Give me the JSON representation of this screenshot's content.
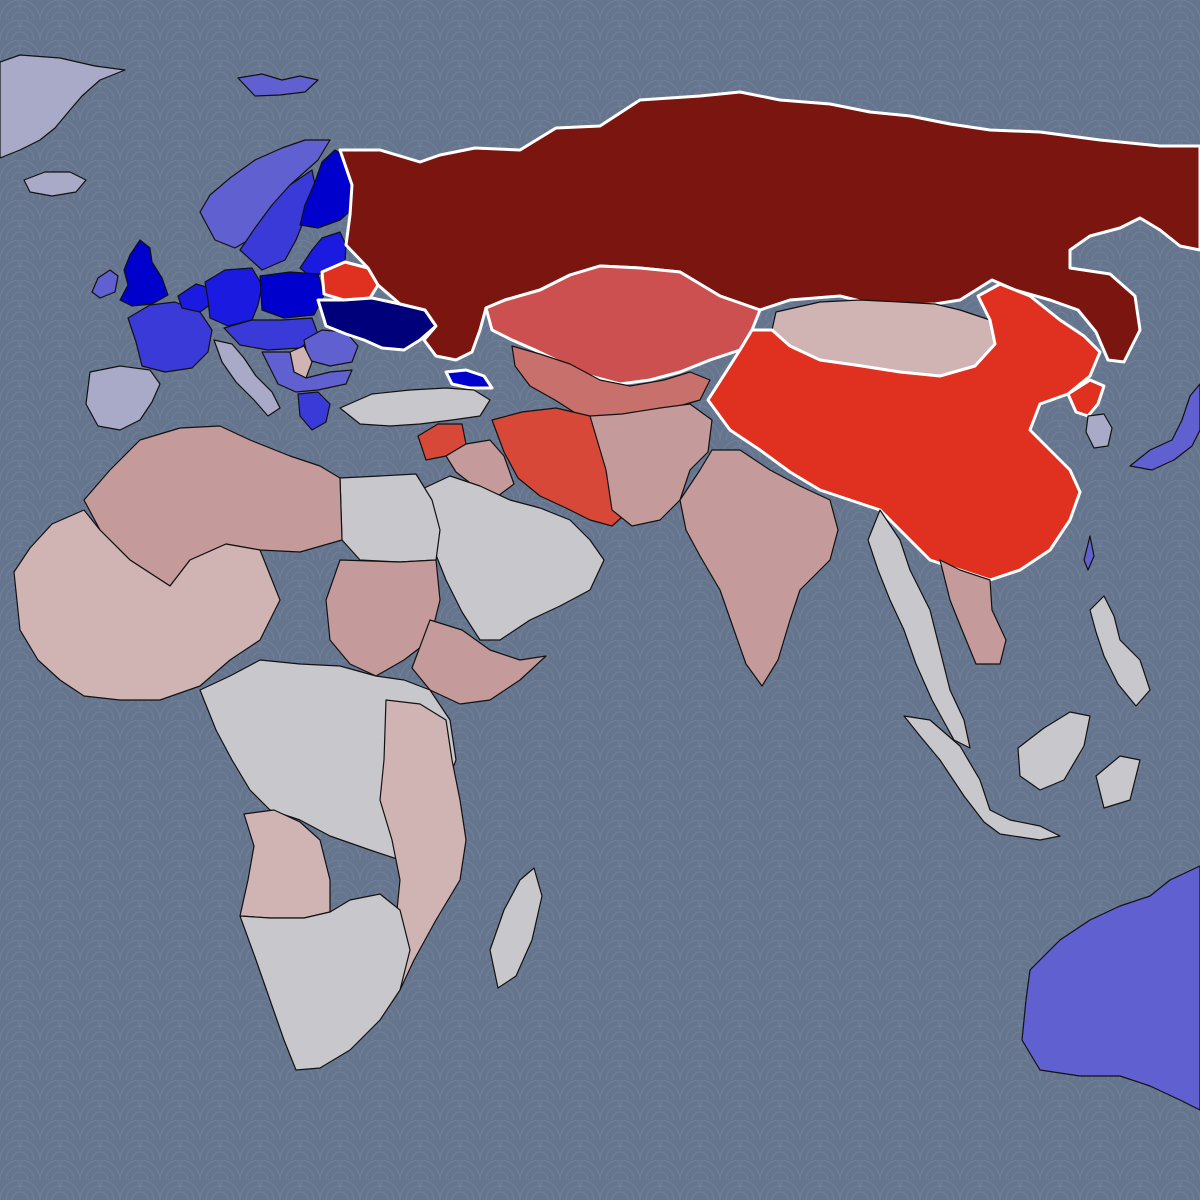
{
  "map": {
    "ocean_color": "#66758e",
    "wave_color": "#7a88a0",
    "border_color": "#111111",
    "highlight_border_color": "#ffffff"
  },
  "legend_colors": {
    "strong_blue": "#0000cc",
    "blue": "#1a1ae0",
    "medium_blue": "#3a3ad8",
    "light_blue": "#6060d0",
    "pale_blue": "#a8aac8",
    "navy": "#00007a",
    "neutral": "#c8c8cc",
    "pale_red": "#d0b4b4",
    "light_red": "#c49a9a",
    "medium_red": "#c8706c",
    "red": "#cc5050",
    "strong_red": "#d84838",
    "bright_red": "#e03020",
    "dark_red": "#7a1510"
  },
  "regions": [
    {
      "name": "greenland",
      "color": "pale_blue"
    },
    {
      "name": "iceland",
      "color": "pale_blue"
    },
    {
      "name": "svalbard",
      "color": "light_blue"
    },
    {
      "name": "norway",
      "color": "light_blue"
    },
    {
      "name": "sweden",
      "color": "medium_blue"
    },
    {
      "name": "finland",
      "color": "strong_blue"
    },
    {
      "name": "baltics",
      "color": "blue"
    },
    {
      "name": "united-kingdom",
      "color": "strong_blue"
    },
    {
      "name": "ireland",
      "color": "light_blue"
    },
    {
      "name": "france",
      "color": "medium_blue"
    },
    {
      "name": "benelux",
      "color": "blue"
    },
    {
      "name": "germany",
      "color": "blue"
    },
    {
      "name": "poland",
      "color": "strong_blue"
    },
    {
      "name": "central-europe",
      "color": "medium_blue"
    },
    {
      "name": "italy",
      "color": "pale_blue"
    },
    {
      "name": "iberia",
      "color": "pale_blue"
    },
    {
      "name": "romania-moldova",
      "color": "light_blue"
    },
    {
      "name": "serbia",
      "color": "pale_red"
    },
    {
      "name": "balkans",
      "color": "light_blue"
    },
    {
      "name": "greece",
      "color": "medium_blue"
    },
    {
      "name": "belarus",
      "color": "bright_red"
    },
    {
      "name": "ukraine",
      "color": "navy"
    },
    {
      "name": "georgia",
      "color": "strong_blue"
    },
    {
      "name": "russia",
      "color": "dark_red"
    },
    {
      "name": "kazakhstan",
      "color": "red"
    },
    {
      "name": "central-asia",
      "color": "medium_red"
    },
    {
      "name": "mongolia",
      "color": "pale_red"
    },
    {
      "name": "china",
      "color": "bright_red"
    },
    {
      "name": "north-korea",
      "color": "bright_red"
    },
    {
      "name": "south-korea",
      "color": "pale_blue"
    },
    {
      "name": "japan",
      "color": "light_blue"
    },
    {
      "name": "taiwan",
      "color": "light_blue"
    },
    {
      "name": "turkey",
      "color": "neutral"
    },
    {
      "name": "syria",
      "color": "strong_red"
    },
    {
      "name": "iraq",
      "color": "light_red"
    },
    {
      "name": "iran",
      "color": "strong_red"
    },
    {
      "name": "arabia",
      "color": "neutral"
    },
    {
      "name": "afghanistan-pakistan",
      "color": "light_red"
    },
    {
      "name": "india",
      "color": "light_red"
    },
    {
      "name": "southeast-asia",
      "color": "neutral"
    },
    {
      "name": "vietnam-laos",
      "color": "light_red"
    },
    {
      "name": "indonesia",
      "color": "neutral"
    },
    {
      "name": "philippines",
      "color": "neutral"
    },
    {
      "name": "australia",
      "color": "light_blue"
    },
    {
      "name": "north-africa",
      "color": "light_red"
    },
    {
      "name": "west-africa",
      "color": "pale_red"
    },
    {
      "name": "sudan",
      "color": "light_red"
    },
    {
      "name": "ethiopia",
      "color": "light_red"
    },
    {
      "name": "central-africa",
      "color": "neutral"
    },
    {
      "name": "east-africa",
      "color": "pale_red"
    },
    {
      "name": "angola",
      "color": "pale_red"
    },
    {
      "name": "southern-africa",
      "color": "neutral"
    },
    {
      "name": "madagascar",
      "color": "neutral"
    },
    {
      "name": "egypt",
      "color": "neutral"
    }
  ]
}
